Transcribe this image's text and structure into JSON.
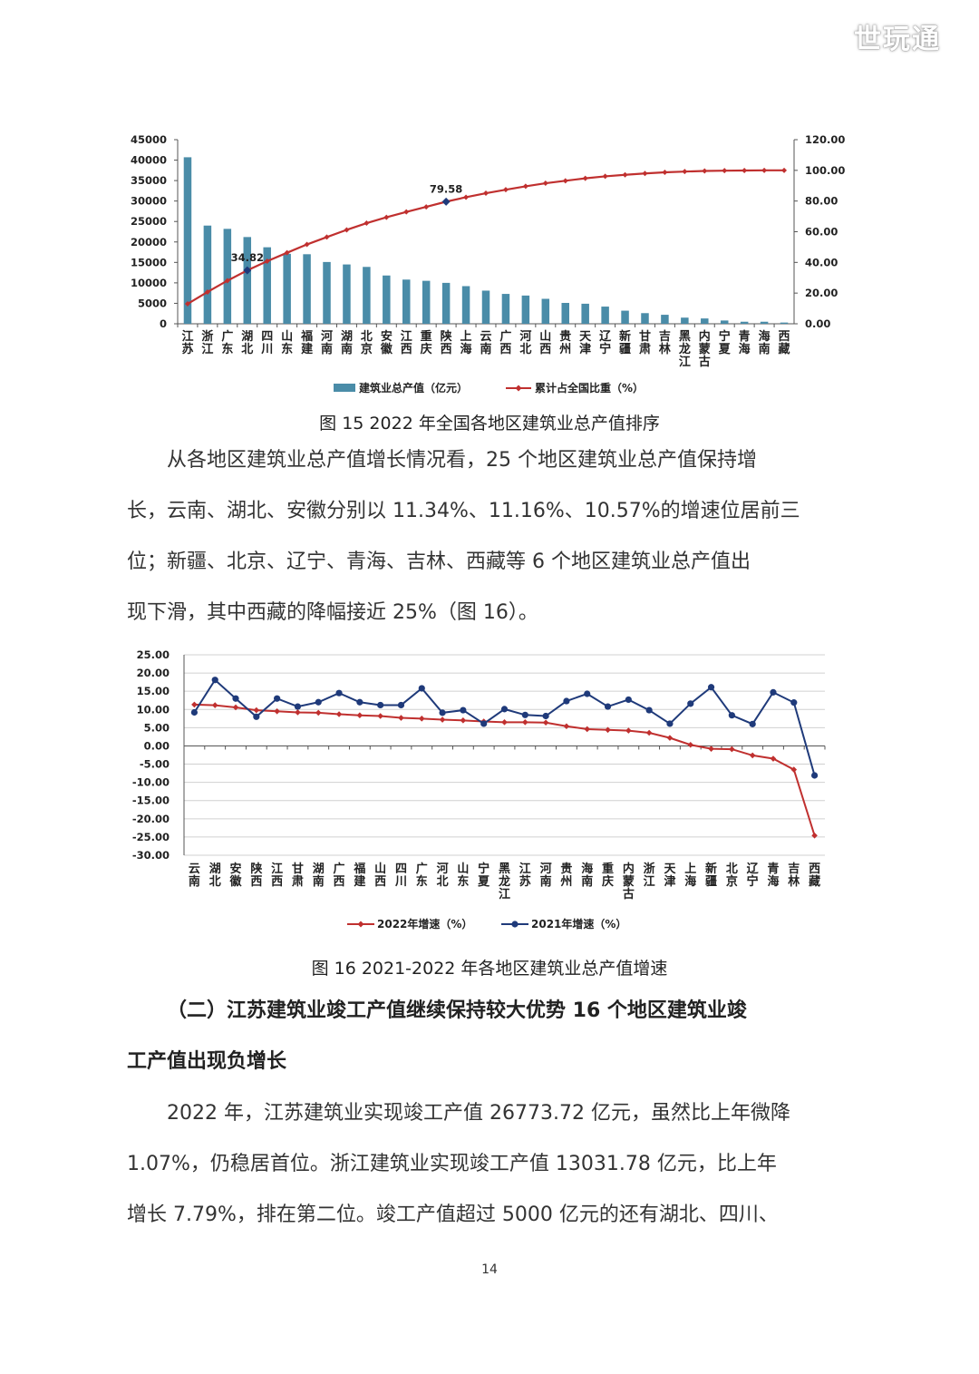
{
  "watermark": "世玩通",
  "chart_data": [
    {
      "type": "bar",
      "categories": [
        "江苏",
        "浙江",
        "广东",
        "湖北",
        "四川",
        "山东",
        "福建",
        "河南",
        "湖南",
        "北京",
        "安徽",
        "江西",
        "重庆",
        "陕西",
        "上海",
        "云南",
        "广西",
        "河北",
        "山西",
        "贵州",
        "天津",
        "辽宁",
        "新疆",
        "甘肃",
        "吉林",
        "黑龙江",
        "内蒙古",
        "宁夏",
        "青海",
        "海南",
        "西藏"
      ],
      "series": [
        {
          "name": "建筑业总产值（亿元）",
          "type": "bar",
          "axis": "left",
          "color": "#4a8ca8",
          "values": [
            40700,
            24000,
            23200,
            21200,
            18700,
            17100,
            17000,
            15100,
            14500,
            13900,
            11800,
            10800,
            10500,
            10000,
            9200,
            8100,
            7300,
            6900,
            6100,
            5100,
            4900,
            4200,
            3200,
            2600,
            2200,
            1500,
            1300,
            800,
            500,
            500,
            300
          ]
        },
        {
          "name": "累计占全国比重（%）",
          "type": "line",
          "axis": "right",
          "color": "#c0302f",
          "values": [
            13.0,
            20.7,
            28.1,
            34.82,
            40.8,
            46.3,
            51.7,
            56.5,
            61.2,
            65.6,
            69.4,
            72.9,
            76.2,
            79.58,
            82.5,
            85.1,
            87.4,
            89.6,
            91.6,
            93.2,
            94.8,
            96.1,
            97.1,
            98.0,
            98.7,
            99.2,
            99.6,
            99.8,
            99.9,
            100.0,
            100.0
          ]
        }
      ],
      "annotations": [
        "34.82",
        "79.58"
      ],
      "ylim": [
        0,
        45000
      ],
      "y_ticks": [
        "0",
        "5000",
        "10000",
        "15000",
        "20000",
        "25000",
        "30000",
        "35000",
        "40000",
        "45000"
      ],
      "y2lim": [
        0,
        120
      ],
      "y2_ticks": [
        "0.00",
        "20.00",
        "40.00",
        "60.00",
        "80.00",
        "100.00",
        "120.00"
      ],
      "legend": "bottom",
      "grid": false
    },
    {
      "type": "line",
      "categories": [
        "云南",
        "湖北",
        "安徽",
        "陕西",
        "江西",
        "甘肃",
        "湖南",
        "广西",
        "福建",
        "山西",
        "四川",
        "广东",
        "河北",
        "山东",
        "宁夏",
        "黑龙江",
        "江苏",
        "河南",
        "贵州",
        "海南",
        "重庆",
        "内蒙古",
        "浙江",
        "天津",
        "上海",
        "新疆",
        "北京",
        "辽宁",
        "青海",
        "吉林",
        "西藏"
      ],
      "series": [
        {
          "name": "2022年增速（%）",
          "color": "#c0302f",
          "marker": "diamond",
          "values": [
            11.34,
            11.16,
            10.57,
            9.8,
            9.5,
            9.2,
            9.1,
            8.7,
            8.4,
            8.2,
            7.7,
            7.5,
            7.2,
            7.0,
            6.7,
            6.5,
            6.5,
            6.4,
            5.4,
            4.6,
            4.4,
            4.2,
            3.6,
            2.2,
            0.3,
            -0.8,
            -0.9,
            -2.6,
            -3.5,
            -6.5,
            -24.6
          ]
        },
        {
          "name": "2021年增速（%）",
          "color": "#1f3a7a",
          "marker": "circle",
          "values": [
            9.2,
            18.1,
            13.0,
            8.0,
            13.0,
            10.8,
            12.0,
            14.5,
            12.0,
            11.2,
            11.2,
            15.8,
            9.1,
            9.8,
            6.1,
            10.1,
            8.5,
            8.2,
            12.3,
            14.3,
            10.8,
            12.7,
            9.8,
            6.1,
            11.6,
            16.1,
            8.4,
            6.0,
            14.7,
            11.9,
            -8.1
          ]
        }
      ],
      "ylim": [
        -30,
        25
      ],
      "y_ticks": [
        "25.00",
        "20.00",
        "15.00",
        "10.00",
        "5.00",
        "0.00",
        "-5.00",
        "-10.00",
        "-15.00",
        "-20.00",
        "-25.00",
        "-30.00"
      ],
      "legend": "bottom",
      "grid": true
    }
  ],
  "figure15_caption": "图 15  2022 年全国各地区建筑业总产值排序",
  "paragraph1": [
    "从各地区建筑业总产值增长情况看，25 个地区建筑业总产值保持增",
    "长，云南、湖北、安徽分别以 11.34%、11.16%、10.57%的增速位居前三",
    "位；新疆、北京、辽宁、青海、吉林、西藏等 6 个地区建筑业总产值出",
    "现下滑，其中西藏的降幅接近 25%（图 16）。"
  ],
  "figure16_caption": "图 16   2021-2022 年各地区建筑业总产值增速",
  "section_heading": [
    "（二）江苏建筑业竣工产值继续保持较大优势   16 个地区建筑业竣",
    "工产值出现负增长"
  ],
  "paragraph2": [
    "2022 年，江苏建筑业实现竣工产值 26773.72 亿元，虽然比上年微降",
    "1.07%，仍稳居首位。浙江建筑业实现竣工产值 13031.78 亿元，比上年",
    "增长 7.79%，排在第二位。竣工产值超过 5000 亿元的还有湖北、四川、"
  ],
  "page_number": "14"
}
